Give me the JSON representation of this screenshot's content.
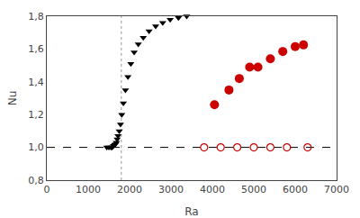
{
  "chart_data": {
    "type": "scatter",
    "xlabel": "Ra",
    "ylabel": "Nu",
    "xlim": [
      0,
      7000
    ],
    "ylim": [
      0.8,
      1.8
    ],
    "xticks": [
      0,
      1000,
      2000,
      3000,
      4000,
      5000,
      6000,
      7000
    ],
    "yticks": [
      {
        "value": 0.8,
        "label": "0,8"
      },
      {
        "value": 1.0,
        "label": "1,0"
      },
      {
        "value": 1.2,
        "label": "1,2"
      },
      {
        "value": 1.4,
        "label": "1,4"
      },
      {
        "value": 1.6,
        "label": "1,6"
      },
      {
        "value": 1.8,
        "label": "1,8"
      }
    ],
    "grid": false,
    "hlines": [
      {
        "y": 1.0,
        "color": "#000000",
        "line_style": "dashed"
      }
    ],
    "vlines": [
      {
        "x": 1800,
        "color": "#999999",
        "line_style": "dotted"
      }
    ],
    "series": [
      {
        "color": "#000000",
        "marker": "triangle-down",
        "x": [
          1450,
          1500,
          1550,
          1580,
          1610,
          1640,
          1660,
          1680,
          1700,
          1720,
          1750,
          1780,
          1810,
          1850,
          1900,
          1960,
          2030,
          2110,
          2210,
          2330,
          2470,
          2630,
          2800,
          2980,
          3180,
          3380
        ],
        "values": [
          1.0,
          1.0,
          1.0,
          1.0,
          1.01,
          1.015,
          1.02,
          1.03,
          1.05,
          1.07,
          1.1,
          1.14,
          1.2,
          1.27,
          1.35,
          1.43,
          1.51,
          1.58,
          1.63,
          1.67,
          1.71,
          1.74,
          1.76,
          1.78,
          1.79,
          1.8
        ]
      },
      {
        "color": "#cc0000",
        "marker": "circle",
        "x": [
          4050,
          4400,
          4650,
          4900,
          5100,
          5400,
          5700,
          6000,
          6200
        ],
        "values": [
          1.26,
          1.35,
          1.42,
          1.49,
          1.49,
          1.54,
          1.585,
          1.615,
          1.625
        ]
      },
      {
        "color": "#cc0000",
        "marker": "circle-open",
        "x": [
          3800,
          4200,
          4600,
          5000,
          5400,
          5800,
          6300
        ],
        "values": [
          1.0,
          1.0,
          1.0,
          1.0,
          1.0,
          1.0,
          1.0
        ]
      }
    ]
  }
}
